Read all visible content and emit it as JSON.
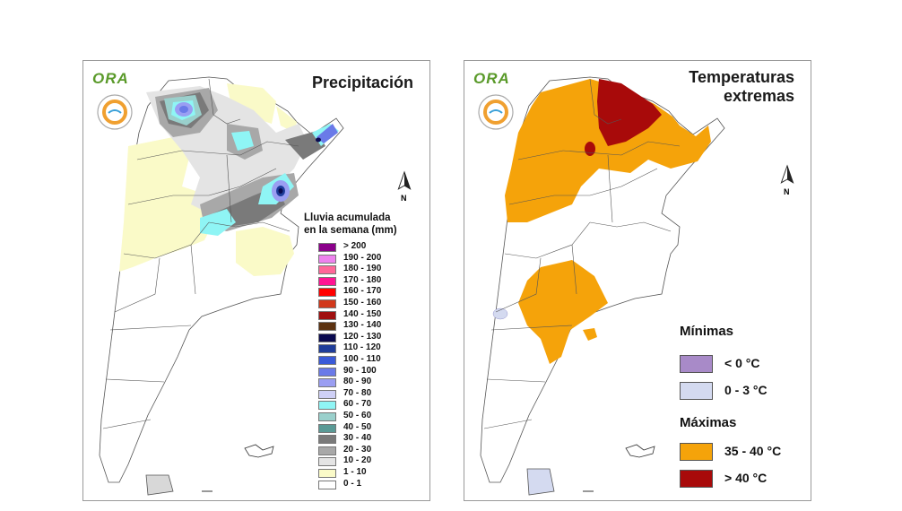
{
  "precipitation_panel": {
    "title": "Precipitación",
    "logo_text": "ORA",
    "north_label": "N",
    "legend_title_line1": "Lluvia acumulada",
    "legend_title_line2": "en la semana (mm)",
    "legend": [
      {
        "label": "> 200",
        "color": "#8b008b"
      },
      {
        "label": "190 - 200",
        "color": "#ee82ee"
      },
      {
        "label": "180 - 190",
        "color": "#ff6699"
      },
      {
        "label": "170 - 180",
        "color": "#ff1493"
      },
      {
        "label": "160 - 170",
        "color": "#ff0000"
      },
      {
        "label": "150 - 160",
        "color": "#d2381a"
      },
      {
        "label": "140 - 150",
        "color": "#a01010"
      },
      {
        "label": "130 - 140",
        "color": "#5c3210"
      },
      {
        "label": "120 - 130",
        "color": "#0a0a50"
      },
      {
        "label": "110 - 120",
        "color": "#1e3c9a"
      },
      {
        "label": "100 - 110",
        "color": "#3a5ad8"
      },
      {
        "label": "90 - 100",
        "color": "#6a7ae8"
      },
      {
        "label": "80 - 90",
        "color": "#9a9ef2"
      },
      {
        "label": "70 - 80",
        "color": "#cfd0f6"
      },
      {
        "label": "60 - 70",
        "color": "#8ff5f5"
      },
      {
        "label": "50 - 60",
        "color": "#9ad0cc"
      },
      {
        "label": "40 - 50",
        "color": "#5a9a96"
      },
      {
        "label": "30 - 40",
        "color": "#7a7a7a"
      },
      {
        "label": "20 - 30",
        "color": "#a8a8a8"
      },
      {
        "label": "10 - 20",
        "color": "#e4e4e4"
      },
      {
        "label": "1 - 10",
        "color": "#fafac8"
      },
      {
        "label": "0 - 1",
        "color": "#ffffff"
      }
    ]
  },
  "temperature_panel": {
    "title_line1": "Temperaturas",
    "title_line2": "extremas",
    "logo_text": "ORA",
    "north_label": "N",
    "minimas_heading": "Mínimas",
    "minimas": [
      {
        "label": "< 0 °C",
        "color": "#a88ac8"
      },
      {
        "label": "0 - 3 °C",
        "color": "#d4daf0"
      }
    ],
    "maximas_heading": "Máximas",
    "maximas": [
      {
        "label": "35 - 40 °C",
        "color": "#f5a30a"
      },
      {
        "label": "> 40 °C",
        "color": "#a80a0a"
      }
    ]
  }
}
